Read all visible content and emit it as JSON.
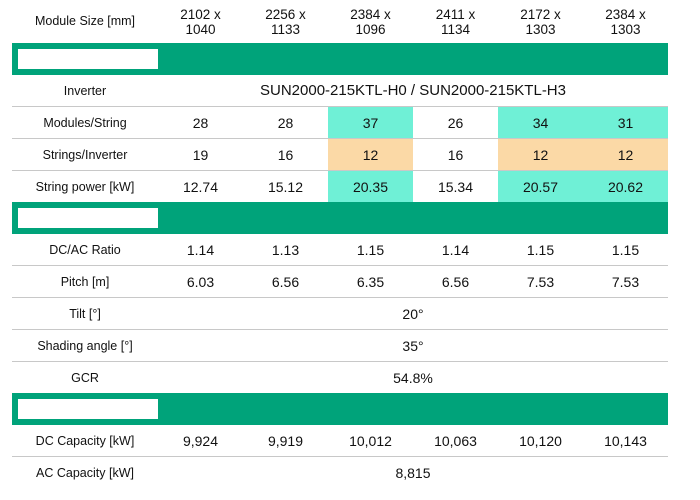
{
  "header": {
    "label": "Module Size [mm]",
    "sizes": [
      [
        "2102 x",
        "1040"
      ],
      [
        "2256 x",
        "1133"
      ],
      [
        "2384 x",
        "1096"
      ],
      [
        "2411 x",
        "1134"
      ],
      [
        "2172 x",
        "1303"
      ],
      [
        "2384 x",
        "1303"
      ]
    ]
  },
  "inverter": {
    "label": "Inverter",
    "value": "SUN2000-215KTL-H0 / SUN2000-215KTL-H3"
  },
  "modules_string": {
    "label": "Modules/String",
    "values": [
      "28",
      "28",
      "37",
      "26",
      "34",
      "31"
    ]
  },
  "strings_inverter": {
    "label": "Strings/Inverter",
    "values": [
      "19",
      "16",
      "12",
      "16",
      "12",
      "12"
    ]
  },
  "string_power": {
    "label": "String power [kW]",
    "values": [
      "12.74",
      "15.12",
      "20.35",
      "15.34",
      "20.57",
      "20.62"
    ]
  },
  "dc_ac_ratio": {
    "label": "DC/AC Ratio",
    "values": [
      "1.14",
      "1.13",
      "1.15",
      "1.14",
      "1.15",
      "1.15"
    ]
  },
  "pitch": {
    "label": "Pitch [m]",
    "values": [
      "6.03",
      "6.56",
      "6.35",
      "6.56",
      "7.53",
      "7.53"
    ]
  },
  "tilt": {
    "label": "Tilt [°]",
    "value": "20°"
  },
  "shading": {
    "label": "Shading angle [°]",
    "value": "35°"
  },
  "gcr": {
    "label": "GCR",
    "value": "54.8%"
  },
  "dc_capacity": {
    "label": "DC Capacity [kW]",
    "values": [
      "9,924",
      "9,919",
      "10,012",
      "10,063",
      "10,120",
      "10,143"
    ]
  },
  "ac_capacity": {
    "label": "AC Capacity [kW]",
    "value": "8,815"
  },
  "colors": {
    "band_green": "#00a37a",
    "highlight_teal": "#6ff0d6",
    "highlight_peach": "#fbd9a6"
  }
}
